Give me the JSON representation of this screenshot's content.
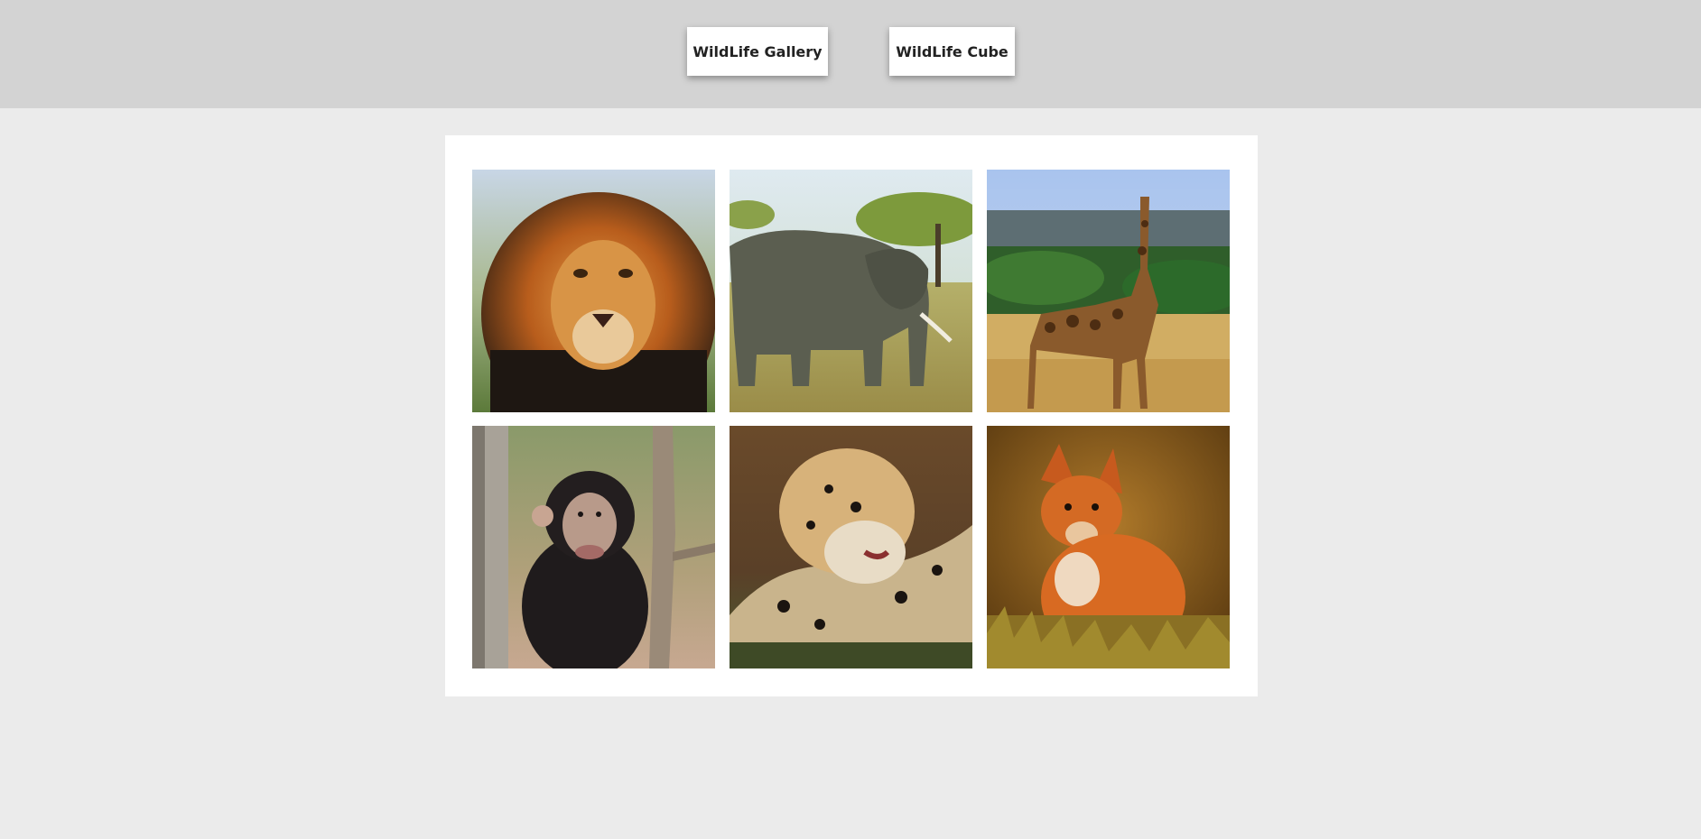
{
  "nav": {
    "gallery_label": "WildLife Gallery",
    "cube_label": "WildLife Cube"
  },
  "gallery": {
    "photos": [
      {
        "subject": "lion"
      },
      {
        "subject": "elephant"
      },
      {
        "subject": "giraffe"
      },
      {
        "subject": "chimpanzee"
      },
      {
        "subject": "leopard"
      },
      {
        "subject": "fox"
      }
    ]
  }
}
